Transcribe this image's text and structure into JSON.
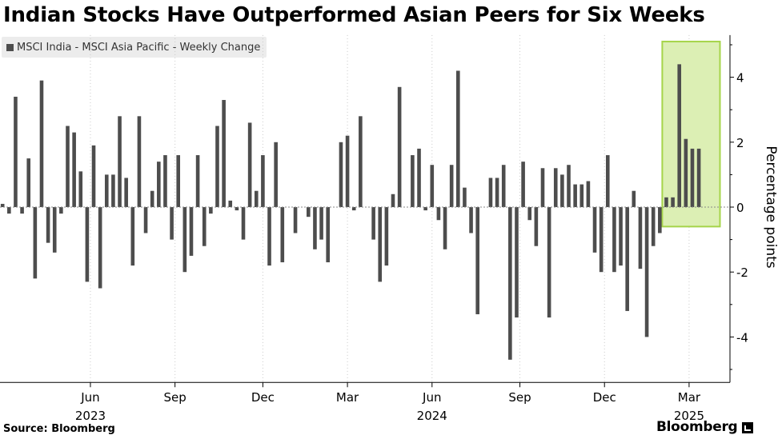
{
  "title": "Indian Stocks Have Outperformed Asian Peers for Six Weeks",
  "source": "Source: Bloomberg",
  "brand": "Bloomberg",
  "colors": {
    "bar": "#4d4d4d",
    "highlight_fill": "#dcefb4",
    "highlight_stroke": "#a6d44a",
    "axis": "#000000",
    "gridline_dotted": "#c8c8c8"
  },
  "chart_data": {
    "type": "bar",
    "legend": [
      "MSCI India - MSCI Asia Pacific - Weekly Change"
    ],
    "ylabel": "Percentage points",
    "ylim": [
      -5.4,
      5.3
    ],
    "y_ticks": [
      4,
      2,
      0,
      -2,
      -4
    ],
    "y_axis_position": "right",
    "grid": "vertical dotted at month ticks",
    "x_month_ticks": [
      {
        "label": "Jun",
        "year": "2023",
        "index": 13.5
      },
      {
        "label": "Sep",
        "year": "",
        "index": 26.5
      },
      {
        "label": "Dec",
        "year": "",
        "index": 40
      },
      {
        "label": "Mar",
        "year": "",
        "index": 53
      },
      {
        "label": "Jun",
        "year": "2024",
        "index": 66
      },
      {
        "label": "Sep",
        "year": "",
        "index": 79.5
      },
      {
        "label": "Dec",
        "year": "",
        "index": 92.5
      },
      {
        "label": "Mar",
        "year": "2025",
        "index": 105.5
      }
    ],
    "highlight": {
      "from_index": 101.5,
      "to_index": 110,
      "ymin": -0.6,
      "ymax": 5.1,
      "note": "last six weeks"
    },
    "values": [
      0.1,
      -0.2,
      3.4,
      -0.2,
      1.5,
      -2.2,
      3.9,
      -1.1,
      -1.4,
      -0.2,
      2.5,
      2.3,
      1.1,
      -2.3,
      1.9,
      -2.5,
      1.0,
      1.0,
      2.8,
      0.9,
      -1.8,
      2.8,
      -0.8,
      0.5,
      1.4,
      1.6,
      -1.0,
      1.6,
      -2.0,
      -1.5,
      1.6,
      -1.2,
      -0.2,
      2.5,
      3.3,
      0.2,
      -0.1,
      -1.0,
      2.6,
      0.5,
      1.6,
      -1.8,
      2.0,
      -1.7,
      0.0,
      -0.8,
      0.0,
      -0.3,
      -1.3,
      -1.0,
      -1.7,
      0.0,
      2.0,
      2.2,
      -0.1,
      2.8,
      0.0,
      -1.0,
      -2.3,
      -1.8,
      0.4,
      3.7,
      0.0,
      1.6,
      1.8,
      -0.1,
      1.3,
      -0.4,
      -1.3,
      1.3,
      4.2,
      0.6,
      -0.8,
      -3.3,
      0.0,
      0.9,
      0.9,
      1.3,
      -4.7,
      -3.4,
      1.4,
      -0.4,
      -1.2,
      1.2,
      -3.4,
      1.2,
      1.0,
      1.3,
      0.7,
      0.7,
      0.8,
      -1.4,
      -2.0,
      1.6,
      -2.0,
      -1.8,
      -3.2,
      0.5,
      -1.9,
      -4.0,
      -1.2,
      -0.8,
      0.3,
      0.3,
      4.4,
      2.1,
      1.8,
      1.8
    ]
  }
}
